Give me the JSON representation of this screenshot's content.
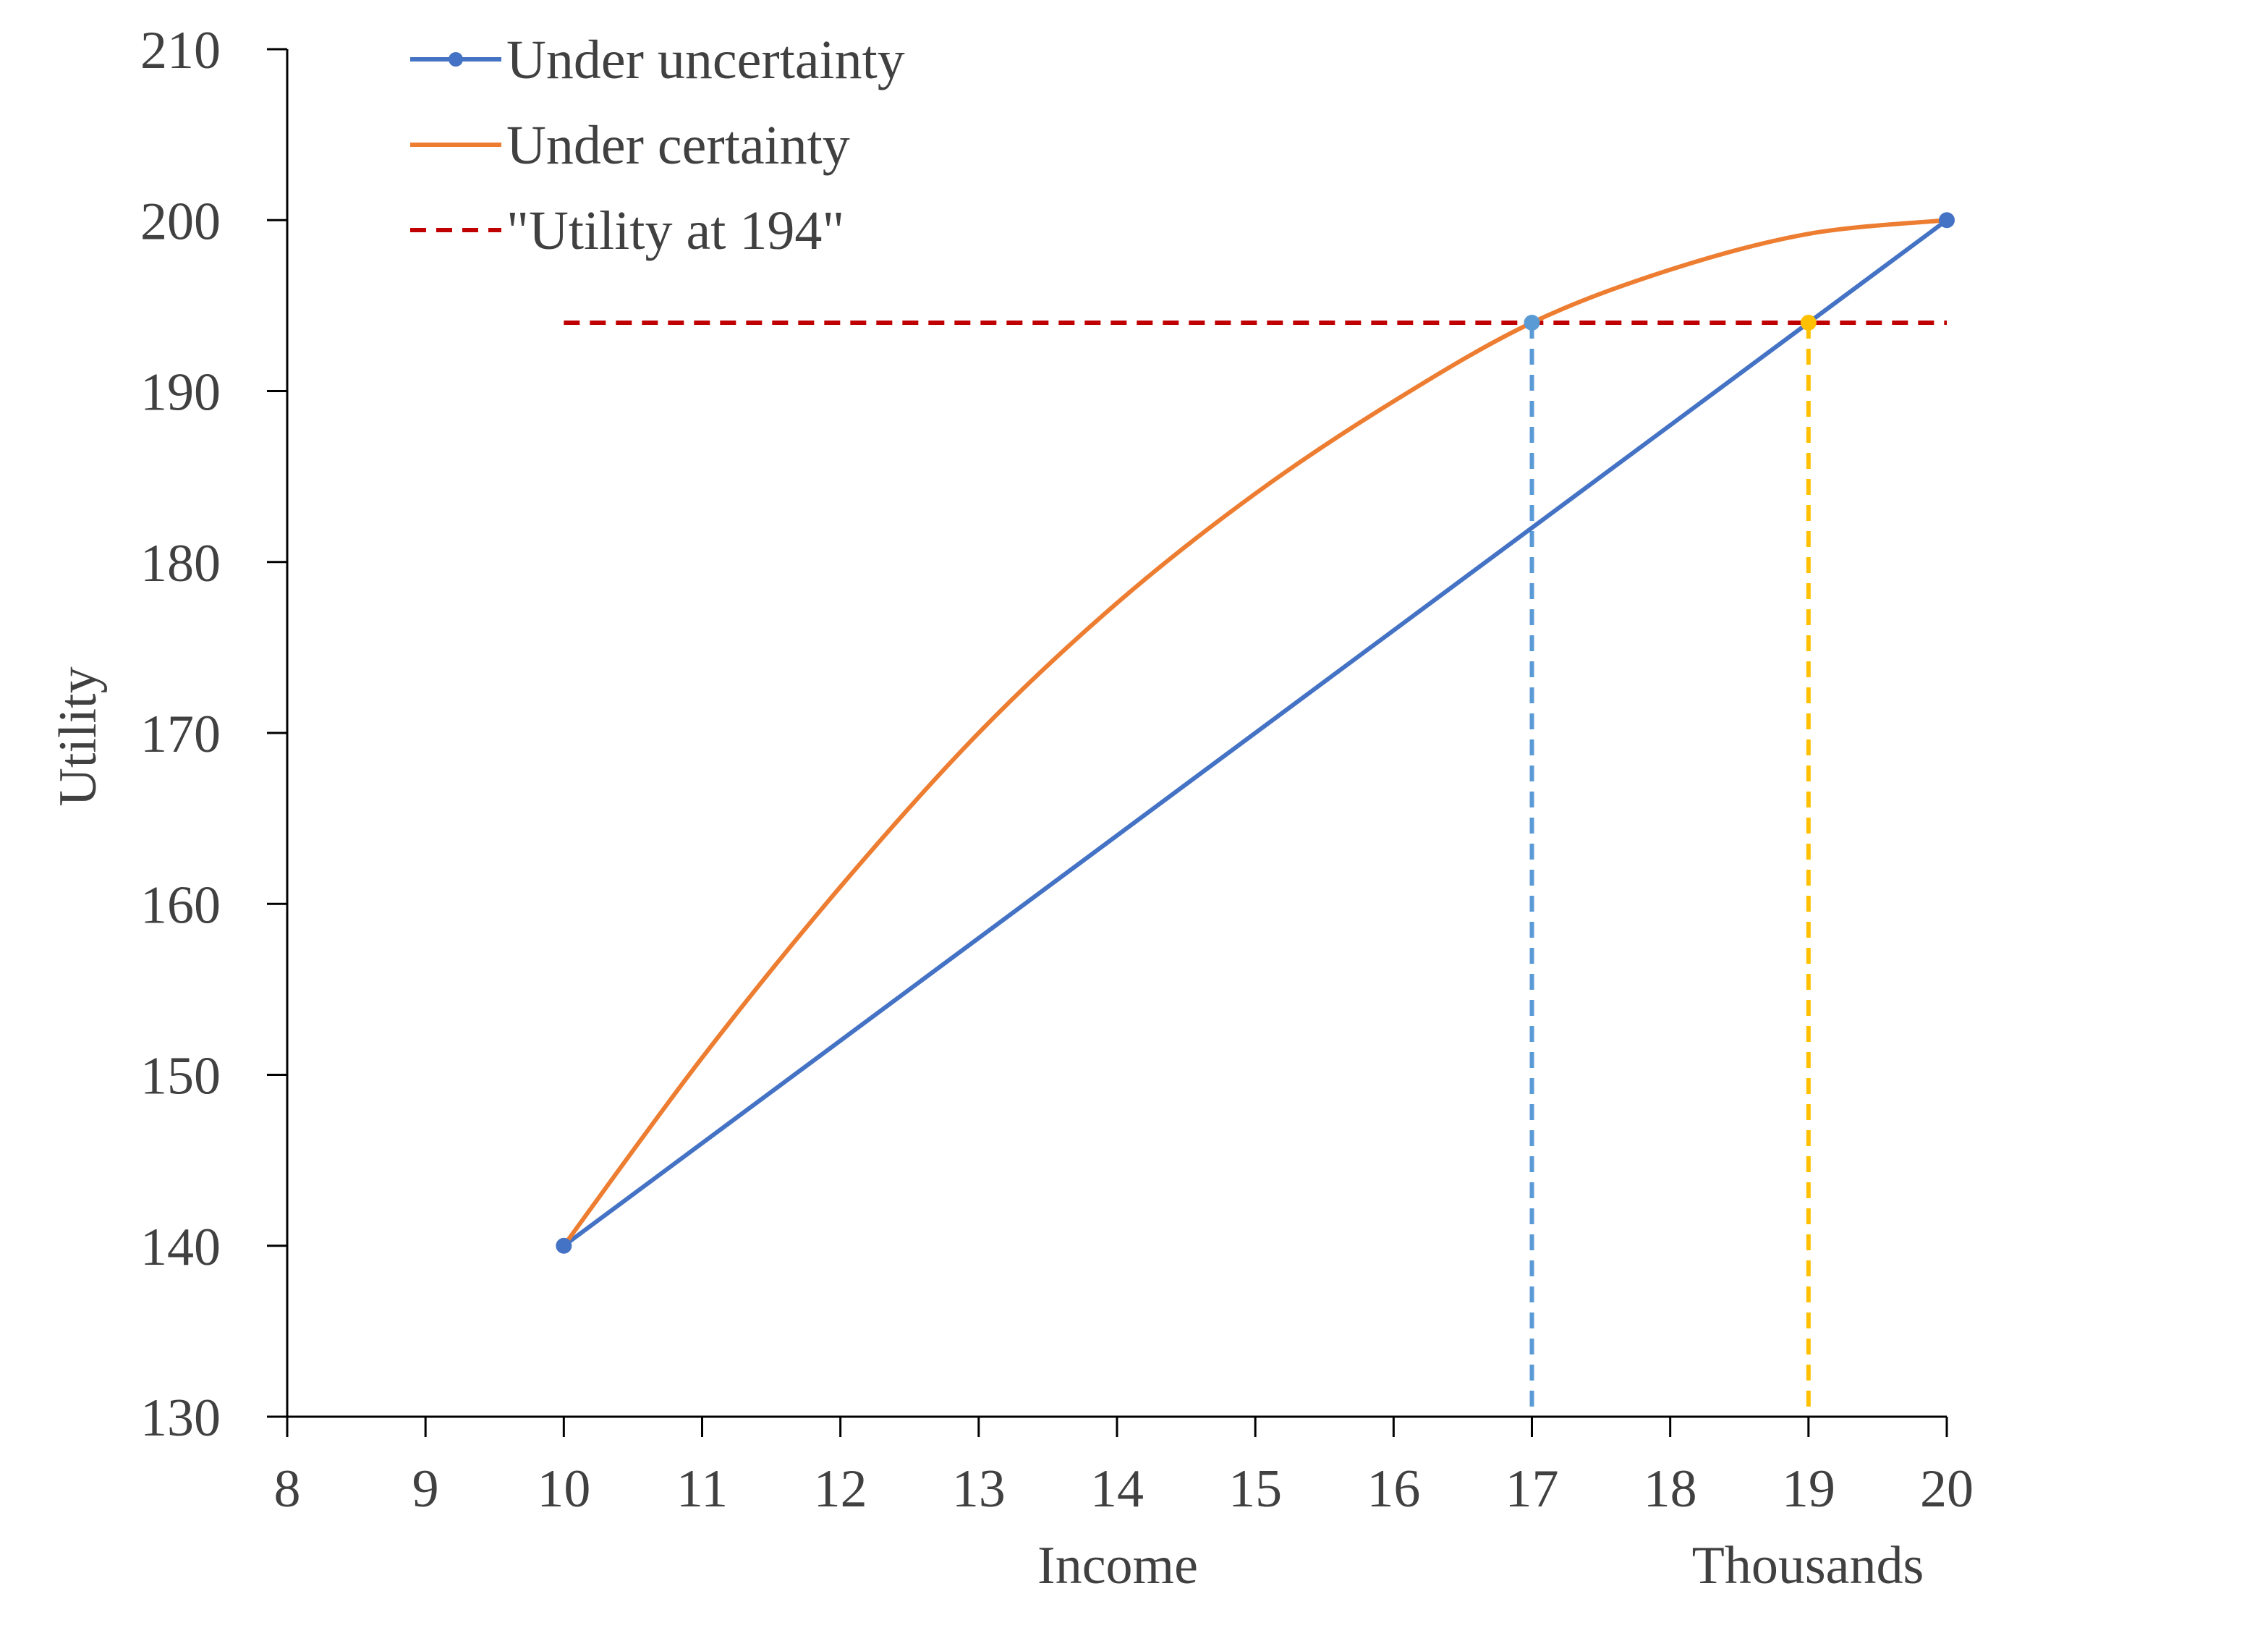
{
  "colors": {
    "uncertainty": "#4472C4",
    "certainty": "#ED7D31",
    "reference": "#C00000",
    "drop_17": "#5B9BD5",
    "drop_19": "#FFC000",
    "axis": "#000000",
    "text": "#404040"
  },
  "chart_data": {
    "type": "line",
    "xlabel": "Income",
    "x_unit_label": "Thousands",
    "ylabel": "Utility",
    "xlim": [
      8,
      20
    ],
    "ylim": [
      130,
      210
    ],
    "x_ticks": [
      8,
      9,
      10,
      11,
      12,
      13,
      14,
      15,
      16,
      17,
      18,
      19,
      20
    ],
    "y_ticks": [
      130,
      140,
      150,
      160,
      170,
      180,
      190,
      200,
      210
    ],
    "grid": false,
    "legend_position": "top-left",
    "series": [
      {
        "name": "Under uncertainty",
        "style": "solid-with-markers",
        "x": [
          10,
          20
        ],
        "y": [
          140,
          200
        ]
      },
      {
        "name": "Under certainty",
        "style": "solid-curve",
        "x": [
          10,
          11,
          12,
          13,
          14,
          15,
          16,
          17,
          18,
          19,
          20
        ],
        "y": [
          140,
          151,
          161,
          170,
          177.6,
          184,
          189.4,
          194,
          197.1,
          199.2,
          200
        ]
      },
      {
        "name": "\"Utility at 194\"",
        "style": "dashed",
        "x": [
          10,
          20
        ],
        "y": [
          194,
          194
        ]
      }
    ],
    "reference_drops": [
      {
        "x": 17,
        "y": 194
      },
      {
        "x": 19,
        "y": 194
      }
    ]
  }
}
